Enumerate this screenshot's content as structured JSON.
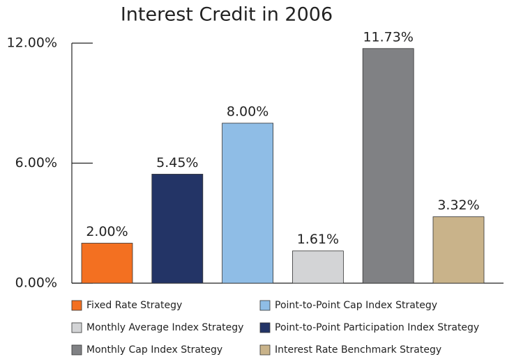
{
  "chart_data": {
    "type": "bar",
    "title": "Interest Credit in 2006",
    "series": [
      {
        "name": "Fixed Rate Strategy",
        "color": "#f37021",
        "values": [
          2.0
        ],
        "value_labels": [
          "2.00%"
        ]
      },
      {
        "name": "Point-to-Point Participation Index Strategy",
        "color": "#233466",
        "values": [
          5.45
        ],
        "value_labels": [
          "5.45%"
        ]
      },
      {
        "name": "Point-to-Point Cap Index Strategy",
        "color": "#8fbde6",
        "values": [
          8.0
        ],
        "value_labels": [
          "8.00%"
        ]
      },
      {
        "name": "Monthly Average Index Strategy",
        "color": "#d3d4d6",
        "values": [
          1.61
        ],
        "value_labels": [
          "1.61%"
        ]
      },
      {
        "name": "Monthly Cap Index Strategy",
        "color": "#808184",
        "values": [
          11.73
        ],
        "value_labels": [
          "11.73%"
        ]
      },
      {
        "name": "Interest Rate Benchmark Strategy",
        "color": "#c9b38a",
        "values": [
          3.32
        ],
        "value_labels": [
          "3.32%"
        ]
      }
    ],
    "ylim": [
      0,
      12
    ],
    "yticks": [
      {
        "value": 0,
        "label": "0.00%"
      },
      {
        "value": 6,
        "label": "6.00%"
      },
      {
        "value": 12,
        "label": "12.00%"
      }
    ]
  }
}
